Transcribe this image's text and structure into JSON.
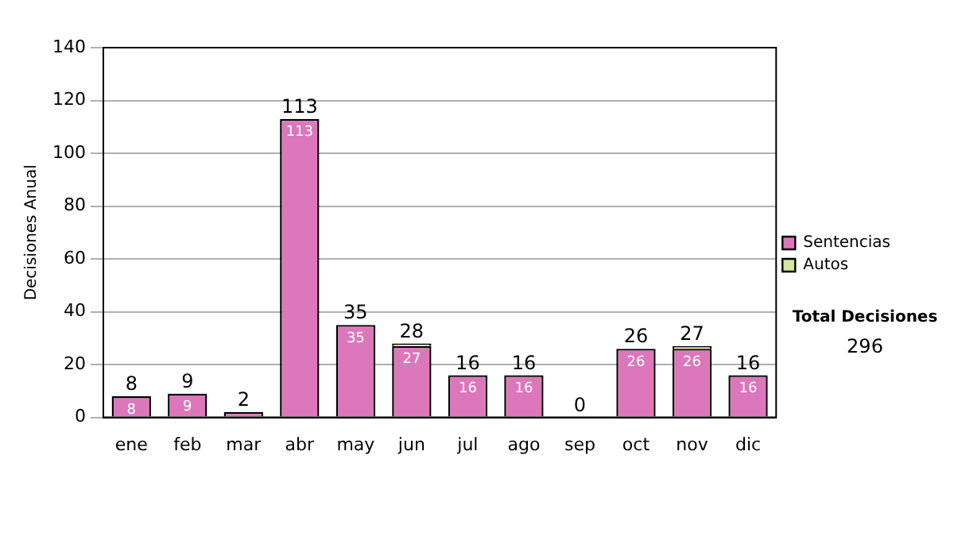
{
  "chart_data": {
    "type": "bar",
    "stacked": true,
    "ylabel": "Decisiones Anual",
    "categories": [
      "ene",
      "feb",
      "mar",
      "abr",
      "may",
      "jun",
      "jul",
      "ago",
      "sep",
      "oct",
      "nov",
      "dic"
    ],
    "series": [
      {
        "name": "Sentencias",
        "color": "#dd77bb",
        "values": [
          8,
          9,
          2,
          113,
          35,
          27,
          16,
          16,
          0,
          26,
          26,
          16
        ],
        "value_labels": [
          "8",
          "9",
          null,
          "113",
          "35",
          "27",
          "16",
          "16",
          null,
          "26",
          "26",
          "16"
        ]
      },
      {
        "name": "Autos",
        "color": "#d4e6a0",
        "values": [
          0,
          0,
          0,
          0,
          0,
          1,
          0,
          0,
          0,
          0,
          1,
          0
        ]
      }
    ],
    "totals": [
      "8",
      "9",
      "2",
      "113",
      "35",
      "28",
      "16",
      "16",
      "0",
      "26",
      "27",
      "16"
    ],
    "ylim": [
      0,
      140
    ],
    "yticks": [
      0,
      20,
      40,
      60,
      80,
      100,
      120,
      140
    ],
    "grid": "y",
    "legend": "right",
    "annotations": [
      "Total Decisiones",
      "296"
    ]
  }
}
